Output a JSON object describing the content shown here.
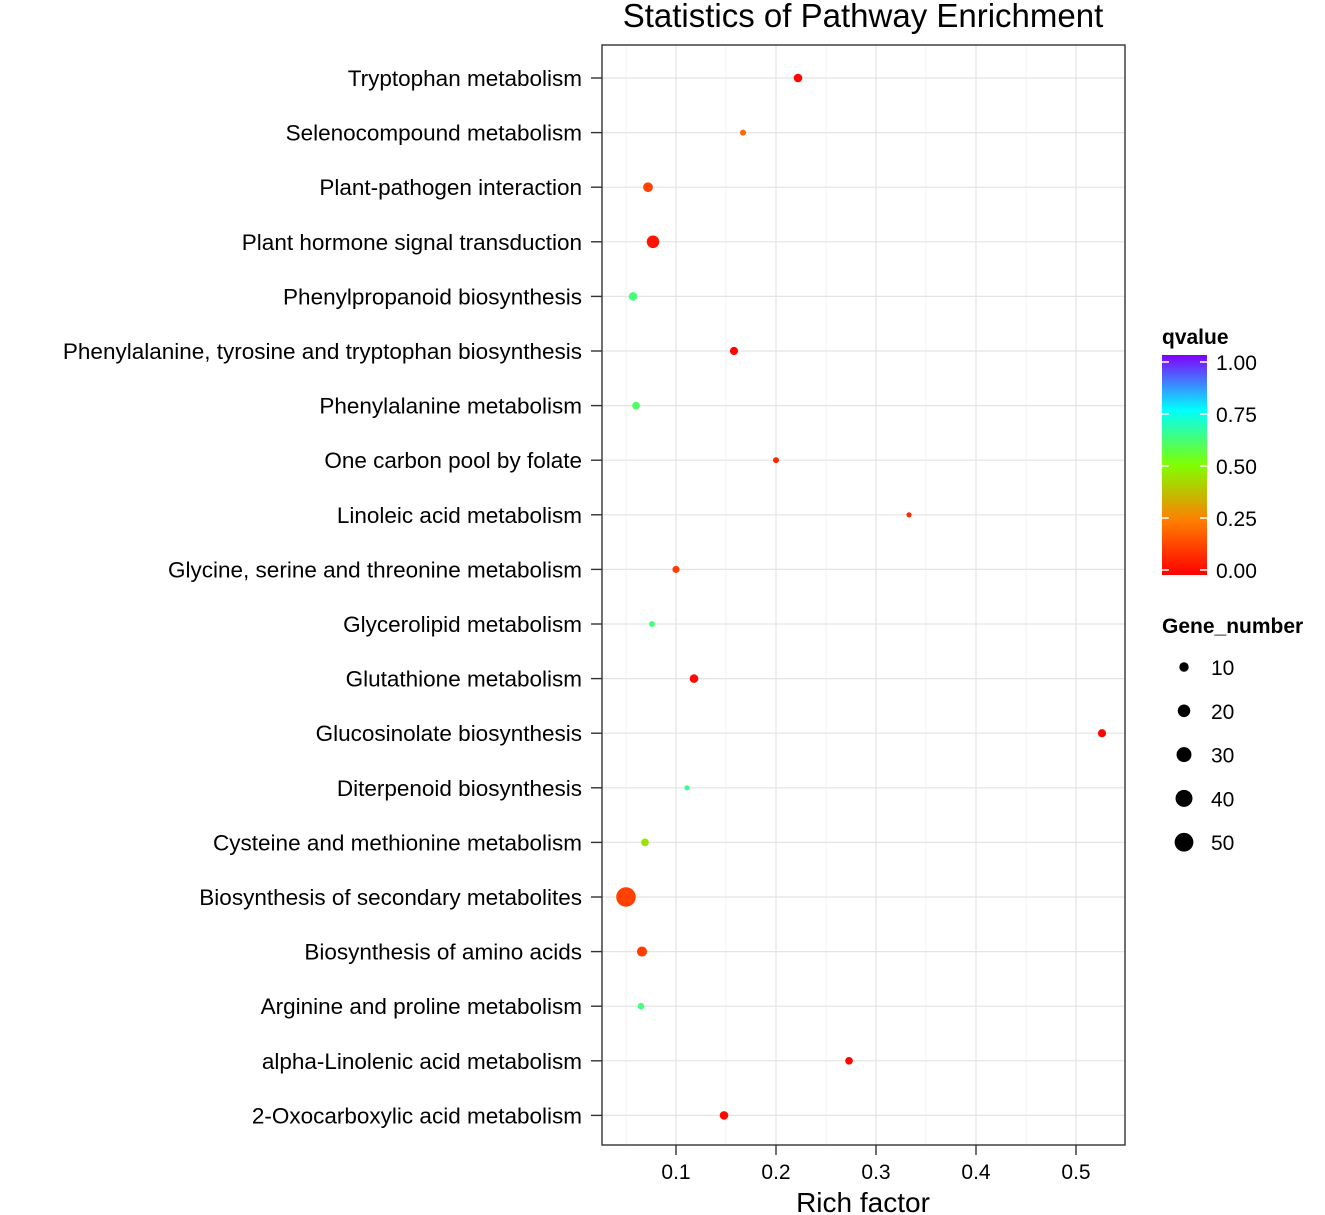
{
  "chart_data": {
    "type": "scatter",
    "title": "Statistics of Pathway Enrichment",
    "xlabel": "Rich factor",
    "ylabel": "",
    "xlim": [
      0.026,
      0.549
    ],
    "x_ticks": [
      0.1,
      0.2,
      0.3,
      0.4,
      0.5
    ],
    "x_tick_labels": [
      "0.1",
      "0.2",
      "0.3",
      "0.4",
      "0.5"
    ],
    "grid": true,
    "categories": [
      "Tryptophan metabolism",
      "Selenocompound metabolism",
      "Plant-pathogen interaction",
      "Plant hormone signal transduction",
      "Phenylpropanoid biosynthesis",
      "Phenylalanine, tyrosine and tryptophan biosynthesis",
      "Phenylalanine metabolism",
      "One carbon pool by folate",
      "Linoleic acid metabolism",
      "Glycine, serine and threonine metabolism",
      "Glycerolipid metabolism",
      "Glutathione metabolism",
      "Glucosinolate biosynthesis",
      "Diterpenoid biosynthesis",
      "Cysteine and methionine metabolism",
      "Biosynthesis of secondary metabolites",
      "Biosynthesis of amino acids",
      "Arginine and proline metabolism",
      "alpha-Linolenic acid metabolism",
      "2-Oxocarboxylic acid metabolism"
    ],
    "points": [
      {
        "pathway": "Tryptophan metabolism",
        "rich_factor": 0.222,
        "qvalue": 0.01,
        "gene_number": 8
      },
      {
        "pathway": "Selenocompound metabolism",
        "rich_factor": 0.167,
        "qvalue": 0.2,
        "gene_number": 3
      },
      {
        "pathway": "Plant-pathogen interaction",
        "rich_factor": 0.072,
        "qvalue": 0.13,
        "gene_number": 11
      },
      {
        "pathway": "Plant hormone signal transduction",
        "rich_factor": 0.077,
        "qvalue": 0.04,
        "gene_number": 20
      },
      {
        "pathway": "Phenylpropanoid biosynthesis",
        "rich_factor": 0.057,
        "qvalue": 0.62,
        "gene_number": 8
      },
      {
        "pathway": "Phenylalanine, tyrosine and tryptophan biosynthesis",
        "rich_factor": 0.158,
        "qvalue": 0.01,
        "gene_number": 7
      },
      {
        "pathway": "Phenylalanine metabolism",
        "rich_factor": 0.06,
        "qvalue": 0.6,
        "gene_number": 6
      },
      {
        "pathway": "One carbon pool by folate",
        "rich_factor": 0.2,
        "qvalue": 0.07,
        "gene_number": 3
      },
      {
        "pathway": "Linoleic acid metabolism",
        "rich_factor": 0.333,
        "qvalue": 0.08,
        "gene_number": 2
      },
      {
        "pathway": "Glycine, serine and threonine metabolism",
        "rich_factor": 0.1,
        "qvalue": 0.12,
        "gene_number": 5
      },
      {
        "pathway": "Glycerolipid metabolism",
        "rich_factor": 0.076,
        "qvalue": 0.62,
        "gene_number": 3
      },
      {
        "pathway": "Glutathione metabolism",
        "rich_factor": 0.118,
        "qvalue": 0.02,
        "gene_number": 8
      },
      {
        "pathway": "Glucosinolate biosynthesis",
        "rich_factor": 0.526,
        "qvalue": 0.01,
        "gene_number": 7
      },
      {
        "pathway": "Diterpenoid biosynthesis",
        "rich_factor": 0.111,
        "qvalue": 0.64,
        "gene_number": 2
      },
      {
        "pathway": "Cysteine and methionine metabolism",
        "rich_factor": 0.069,
        "qvalue": 0.45,
        "gene_number": 6
      },
      {
        "pathway": "Biosynthesis of secondary metabolites",
        "rich_factor": 0.05,
        "qvalue": 0.13,
        "gene_number": 55
      },
      {
        "pathway": "Biosynthesis of amino acids",
        "rich_factor": 0.066,
        "qvalue": 0.12,
        "gene_number": 12
      },
      {
        "pathway": "Arginine and proline metabolism",
        "rich_factor": 0.065,
        "qvalue": 0.62,
        "gene_number": 4
      },
      {
        "pathway": "alpha-Linolenic acid metabolism",
        "rich_factor": 0.273,
        "qvalue": 0.01,
        "gene_number": 6
      },
      {
        "pathway": "2-Oxocarboxylic acid metabolism",
        "rich_factor": 0.148,
        "qvalue": 0.02,
        "gene_number": 8
      }
    ],
    "color_legend": {
      "title": "qvalue",
      "range": [
        0,
        1
      ],
      "ticks": [
        "1.00",
        "0.75",
        "0.50",
        "0.25",
        "0.00"
      ],
      "tick_values": [
        1.0,
        0.75,
        0.5,
        0.25,
        0.0
      ],
      "gradient_colors": [
        "#ff0000",
        "#ff7f00",
        "#80ff00",
        "#00ffff",
        "#8000ff"
      ]
    },
    "size_legend": {
      "title": "Gene_number",
      "entries": [
        "10",
        "20",
        "30",
        "40",
        "50"
      ],
      "values": [
        10,
        20,
        30,
        40,
        50
      ]
    }
  }
}
